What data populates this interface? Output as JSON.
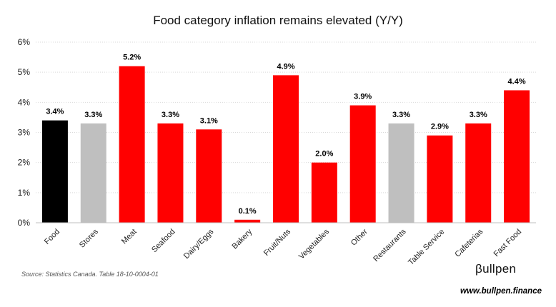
{
  "chart_data": {
    "type": "bar",
    "title": "Food category inflation remains elevated (Y/Y)",
    "categories": [
      "Food",
      "Stores",
      "Meat",
      "Seafood",
      "Dairy/Eggs",
      "Bakery",
      "Fruit/Nuts",
      "Vegetables",
      "Other",
      "Restaurants",
      "Table Service",
      "Cafeterias",
      "Fast Food"
    ],
    "values": [
      3.4,
      3.3,
      5.2,
      3.3,
      3.1,
      0.1,
      4.9,
      2.0,
      3.9,
      3.3,
      2.9,
      3.3,
      4.4
    ],
    "data_labels": [
      "3.4%",
      "3.3%",
      "5.2%",
      "3.3%",
      "3.1%",
      "0.1%",
      "4.9%",
      "2.0%",
      "3.9%",
      "3.3%",
      "2.9%",
      "3.3%",
      "4.4%"
    ],
    "bar_colors": [
      "#000000",
      "#bfbfbf",
      "#ff0000",
      "#ff0000",
      "#ff0000",
      "#ff0000",
      "#ff0000",
      "#ff0000",
      "#ff0000",
      "#bfbfbf",
      "#ff0000",
      "#ff0000",
      "#ff0000"
    ],
    "yticks": [
      "0%",
      "1%",
      "2%",
      "3%",
      "4%",
      "5%",
      "6%"
    ],
    "ylim": [
      0,
      6
    ],
    "xlabel": "",
    "ylabel": "",
    "grid": true,
    "legend": "none"
  },
  "footer": {
    "source": "Source: Statistics Canada. Table 18-10-0004-01",
    "brand": "βullpen",
    "url": "www.bullpen.finance"
  }
}
